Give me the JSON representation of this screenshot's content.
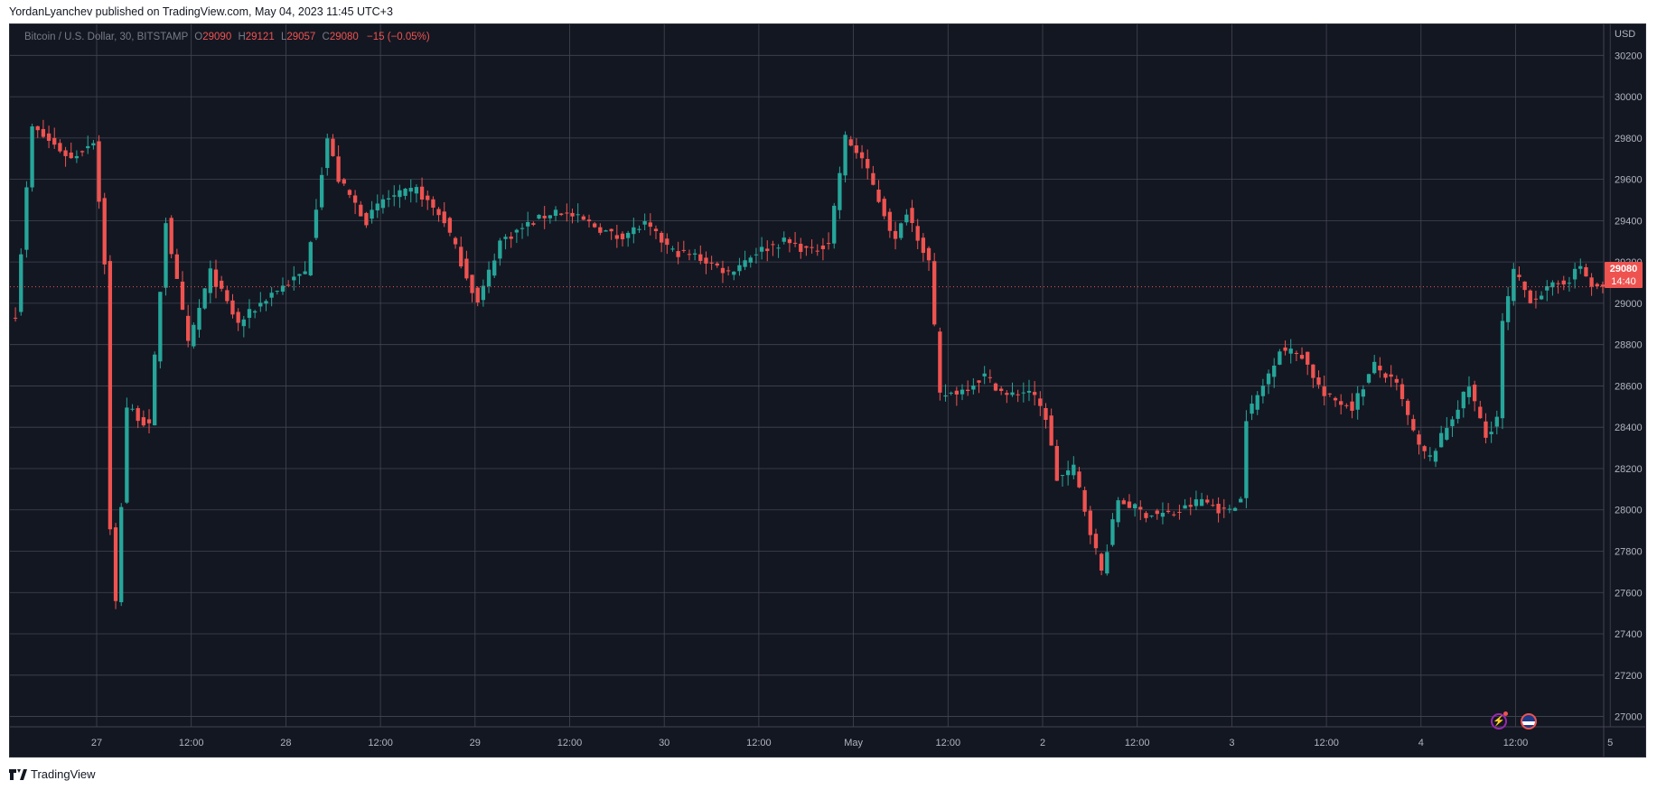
{
  "header": {
    "publisher": "YordanLyanchev published on TradingView.com, May 04, 2023 11:45 UTC+3"
  },
  "legend": {
    "symbol": "Bitcoin / U.S. Dollar, 30, BITSTAMP",
    "open_label": "O",
    "open": "29090",
    "high_label": "H",
    "high": "29121",
    "low_label": "L",
    "low": "29057",
    "close_label": "C",
    "close": "29080",
    "change": "−15 (−0.05%)"
  },
  "price_tag": {
    "price": "29080",
    "countdown": "14:40"
  },
  "footer": {
    "brand": "TradingView"
  },
  "icons": {
    "bolt": "lightning-icon",
    "flag": "us-flag-icon"
  },
  "colors": {
    "up": "#26a69a",
    "down": "#ef5350",
    "background": "#131722",
    "grid": "#434651",
    "axis_text": "#b2b5be"
  },
  "chart_data": {
    "type": "candlestick",
    "title": "Bitcoin / U.S. Dollar, 30, BITSTAMP",
    "currency_label": "USD",
    "ylim": [
      26950,
      30350
    ],
    "yticks": [
      27000,
      27200,
      27400,
      27600,
      27800,
      28000,
      28200,
      28400,
      28600,
      28800,
      29000,
      29200,
      29400,
      29600,
      29800,
      30000,
      30200
    ],
    "xlabels": [
      "27",
      "12:00",
      "28",
      "12:00",
      "29",
      "12:00",
      "30",
      "12:00",
      "May",
      "12:00",
      "2",
      "12:00",
      "3",
      "12:00",
      "4",
      "12:00",
      "5"
    ],
    "current_price": 29080,
    "grid": true,
    "key_points": [
      {
        "i": 0,
        "price": 28950
      },
      {
        "i": 3,
        "price": 29850
      },
      {
        "i": 10,
        "price": 29700
      },
      {
        "i": 14,
        "price": 29790
      },
      {
        "i": 16,
        "price": 29200
      },
      {
        "i": 17,
        "price": 27900
      },
      {
        "i": 18,
        "price": 27550
      },
      {
        "i": 20,
        "price": 28500
      },
      {
        "i": 24,
        "price": 28400
      },
      {
        "i": 27,
        "price": 29400
      },
      {
        "i": 31,
        "price": 28800
      },
      {
        "i": 35,
        "price": 29150
      },
      {
        "i": 40,
        "price": 28900
      },
      {
        "i": 46,
        "price": 29050
      },
      {
        "i": 52,
        "price": 29150
      },
      {
        "i": 56,
        "price": 29800
      },
      {
        "i": 58,
        "price": 29600
      },
      {
        "i": 63,
        "price": 29400
      },
      {
        "i": 66,
        "price": 29500
      },
      {
        "i": 72,
        "price": 29550
      },
      {
        "i": 77,
        "price": 29400
      },
      {
        "i": 80,
        "price": 29200
      },
      {
        "i": 83,
        "price": 29000
      },
      {
        "i": 87,
        "price": 29300
      },
      {
        "i": 92,
        "price": 29380
      },
      {
        "i": 97,
        "price": 29450
      },
      {
        "i": 102,
        "price": 29400
      },
      {
        "i": 108,
        "price": 29320
      },
      {
        "i": 113,
        "price": 29380
      },
      {
        "i": 118,
        "price": 29250
      },
      {
        "i": 122,
        "price": 29230
      },
      {
        "i": 128,
        "price": 29150
      },
      {
        "i": 133,
        "price": 29250
      },
      {
        "i": 138,
        "price": 29300
      },
      {
        "i": 143,
        "price": 29250
      },
      {
        "i": 146,
        "price": 29300
      },
      {
        "i": 149,
        "price": 29800
      },
      {
        "i": 152,
        "price": 29700
      },
      {
        "i": 155,
        "price": 29500
      },
      {
        "i": 158,
        "price": 29300
      },
      {
        "i": 160,
        "price": 29450
      },
      {
        "i": 164,
        "price": 29200
      },
      {
        "i": 166,
        "price": 28550
      },
      {
        "i": 170,
        "price": 28580
      },
      {
        "i": 174,
        "price": 28650
      },
      {
        "i": 178,
        "price": 28550
      },
      {
        "i": 182,
        "price": 28580
      },
      {
        "i": 185,
        "price": 28450
      },
      {
        "i": 187,
        "price": 28150
      },
      {
        "i": 190,
        "price": 28200
      },
      {
        "i": 193,
        "price": 27900
      },
      {
        "i": 195,
        "price": 27700
      },
      {
        "i": 198,
        "price": 28050
      },
      {
        "i": 203,
        "price": 27980
      },
      {
        "i": 208,
        "price": 27980
      },
      {
        "i": 213,
        "price": 28050
      },
      {
        "i": 217,
        "price": 27990
      },
      {
        "i": 220,
        "price": 28050
      },
      {
        "i": 221,
        "price": 28450
      },
      {
        "i": 224,
        "price": 28600
      },
      {
        "i": 227,
        "price": 28780
      },
      {
        "i": 231,
        "price": 28750
      },
      {
        "i": 235,
        "price": 28550
      },
      {
        "i": 240,
        "price": 28500
      },
      {
        "i": 244,
        "price": 28700
      },
      {
        "i": 248,
        "price": 28600
      },
      {
        "i": 252,
        "price": 28300
      },
      {
        "i": 254,
        "price": 28250
      },
      {
        "i": 258,
        "price": 28450
      },
      {
        "i": 261,
        "price": 28600
      },
      {
        "i": 264,
        "price": 28350
      },
      {
        "i": 266,
        "price": 28450
      },
      {
        "i": 267,
        "price": 28900
      },
      {
        "i": 269,
        "price": 29150
      },
      {
        "i": 272,
        "price": 29020
      },
      {
        "i": 276,
        "price": 29080
      },
      {
        "i": 279,
        "price": 29120
      },
      {
        "i": 281,
        "price": 29180
      },
      {
        "i": 283,
        "price": 29080
      },
      {
        "i": 285,
        "price": 29080
      }
    ]
  }
}
